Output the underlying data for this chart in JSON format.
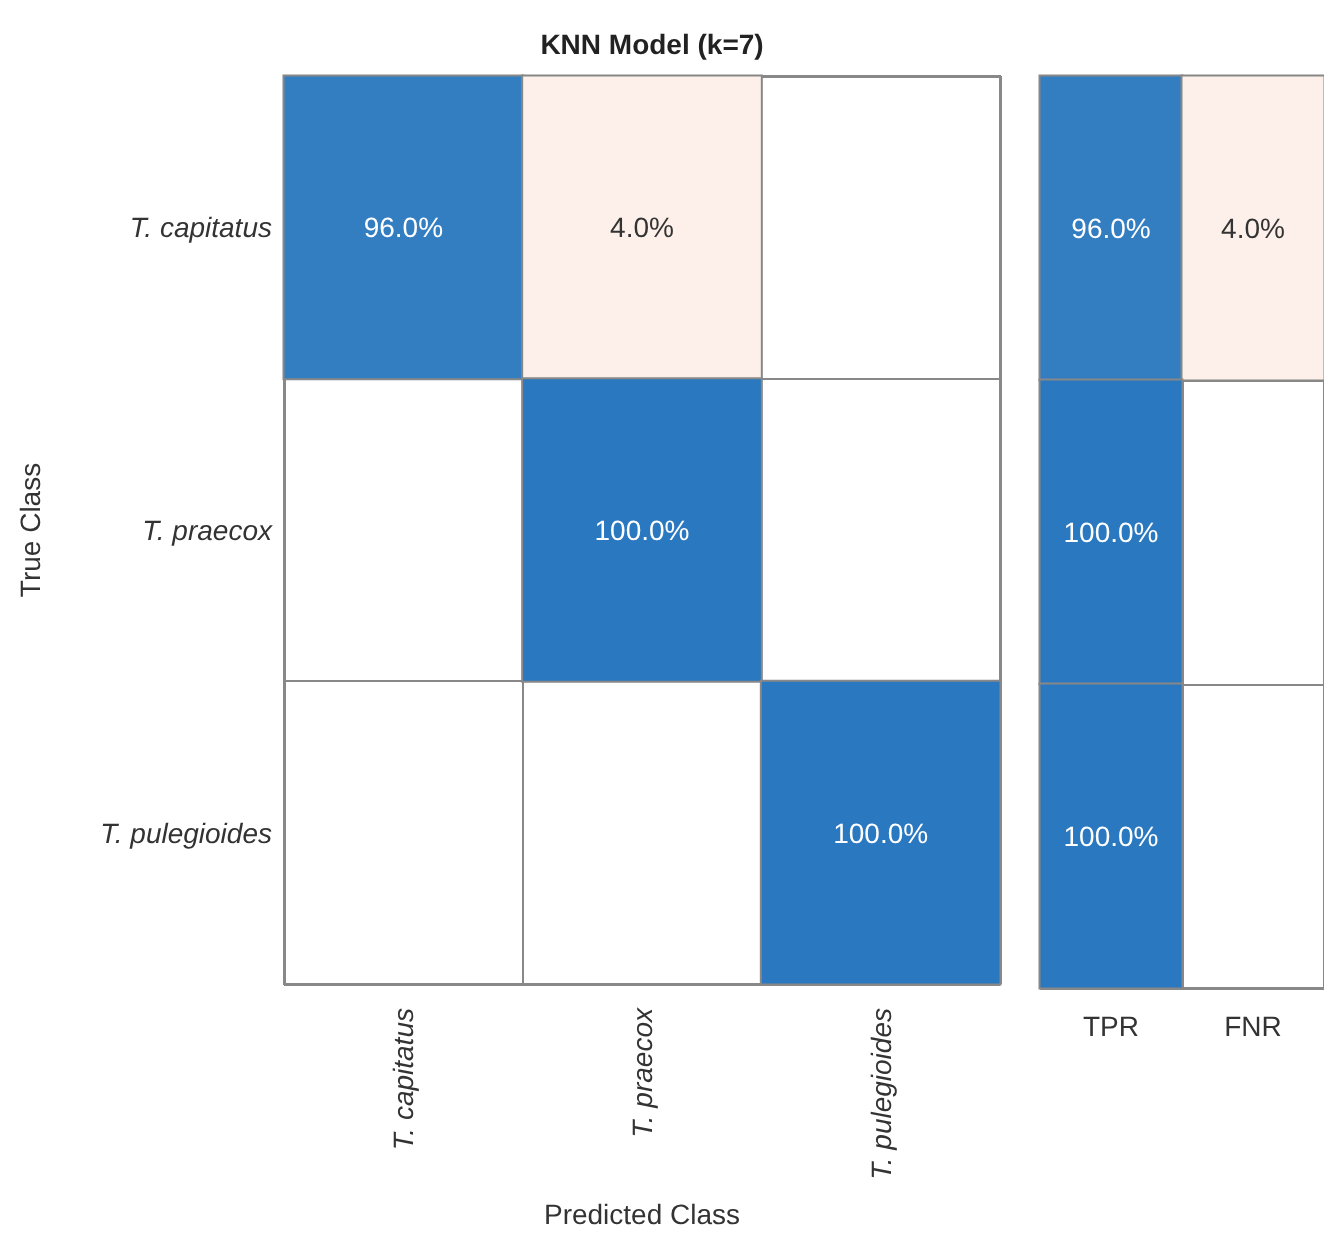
{
  "chart_data": [
    {
      "type": "heatmap",
      "title": "KNN Model (k=7)",
      "xlabel": "Predicted Class",
      "ylabel": "True Class",
      "categories": [
        "T. capitatus",
        "T. praecox",
        "T. pulegioides"
      ],
      "y_categories": [
        "T. capitatus",
        "T. praecox",
        "T. pulegioides"
      ],
      "cells": [
        [
          96,
          4,
          null
        ],
        [
          null,
          100,
          null
        ],
        [
          null,
          null,
          100
        ]
      ],
      "cell_labels": [
        [
          "96.0%",
          "4.0%",
          null
        ],
        [
          null,
          "100.0%",
          null
        ],
        [
          null,
          null,
          "100.0%"
        ]
      ]
    },
    {
      "type": "heatmap",
      "categories": [
        "TPR",
        "FNR"
      ],
      "y_categories": [
        null,
        null,
        null
      ],
      "tick_labels": "x",
      "cells": [
        [
          96,
          4
        ],
        [
          100,
          null
        ],
        [
          100,
          null
        ]
      ],
      "cell_labels": [
        [
          "96.0%",
          "4.0%"
        ],
        [
          "100.0%",
          null
        ],
        [
          "100.0%",
          null
        ]
      ]
    }
  ]
}
